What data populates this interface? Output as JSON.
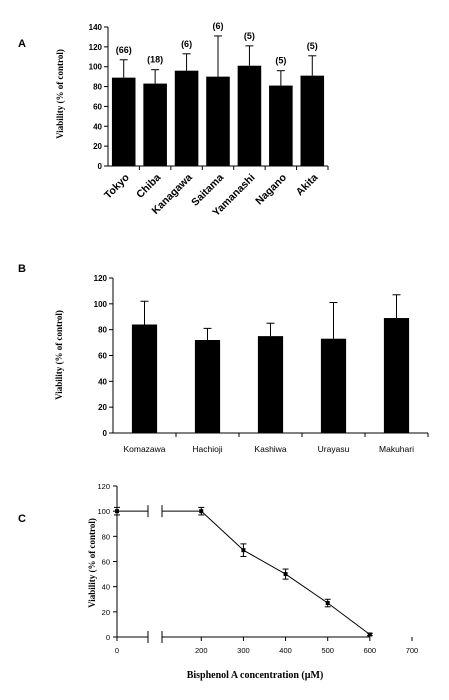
{
  "panels": {
    "a": "A",
    "b": "B",
    "c": "C"
  },
  "chart_data": [
    {
      "type": "bar",
      "categories": [
        "Tokyo",
        "Chiba",
        "Kanagawa",
        "Saitama",
        "Yamanashi",
        "Nagano",
        "Akita"
      ],
      "values": [
        89,
        83,
        96,
        90,
        101,
        81,
        91
      ],
      "errors": [
        18,
        14,
        17,
        41,
        20,
        15,
        20
      ],
      "annotations": [
        "(66)",
        "(18)",
        "(6)",
        "(6)",
        "(5)",
        "(5)",
        "(5)"
      ],
      "ylabel": "Viability (% of control)",
      "ylim": [
        0,
        140
      ],
      "yticks": [
        "0",
        "20",
        "40",
        "60",
        "80",
        "100",
        "120",
        "140"
      ],
      "bar_color": "#000000"
    },
    {
      "type": "bar",
      "categories": [
        "Komazawa",
        "Hachioji",
        "Kashiwa",
        "Urayasu",
        "Makuhari"
      ],
      "values": [
        84,
        72,
        75,
        73,
        89
      ],
      "errors": [
        18,
        9,
        10,
        28,
        18
      ],
      "ylabel": "Viability (% of control)",
      "ylim": [
        0,
        120
      ],
      "yticks": [
        "0",
        "20",
        "40",
        "60",
        "80",
        "100",
        "120"
      ],
      "bar_color": "#000000"
    },
    {
      "type": "line",
      "x": [
        0,
        200,
        300,
        400,
        500,
        600
      ],
      "y": [
        100,
        100,
        69,
        50,
        27,
        2
      ],
      "errors": [
        3,
        3,
        5,
        4,
        3,
        1
      ],
      "xlabel": "Bisphenol A concentration (µM)",
      "ylabel": "Viability (% of control)",
      "xlim": [
        0,
        700
      ],
      "ylim": [
        0,
        120
      ],
      "xticks": [
        "0",
        "100",
        "200",
        "300",
        "400",
        "500",
        "600",
        "700"
      ],
      "yticks": [
        "0",
        "20",
        "40",
        "60",
        "80",
        "100",
        "120"
      ],
      "axis_break": "between 0 and 200"
    }
  ]
}
